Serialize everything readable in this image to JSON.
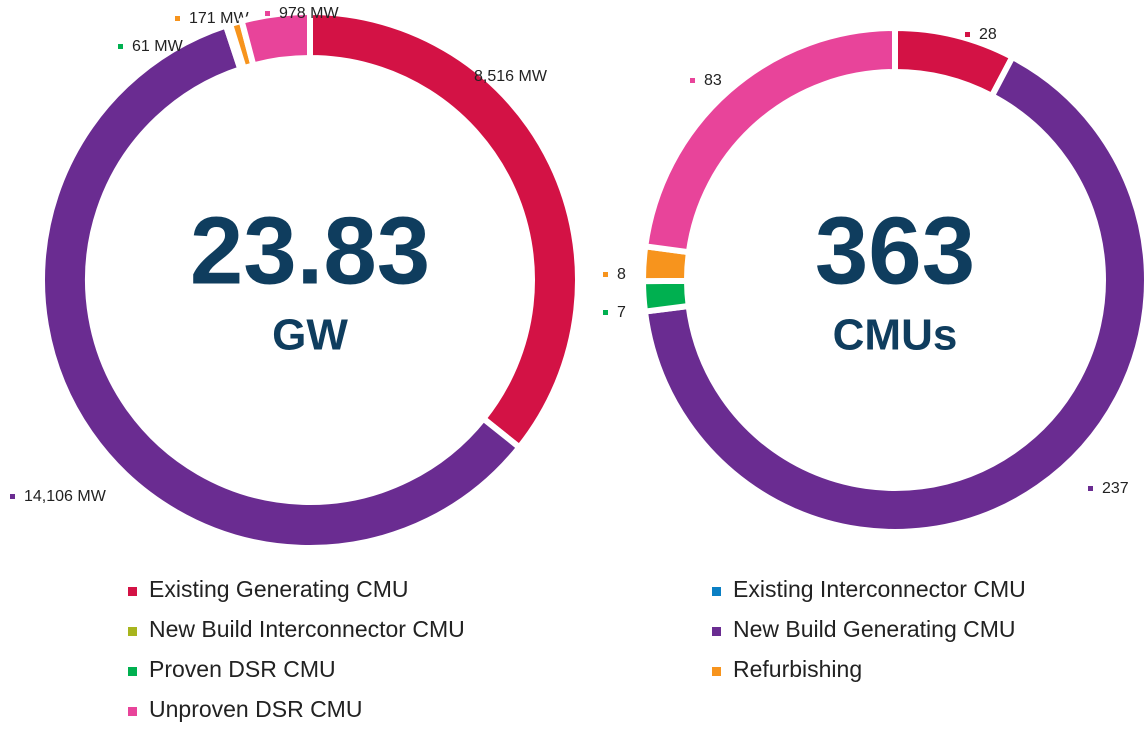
{
  "chart_data": [
    {
      "type": "donut",
      "center_value": "23.83",
      "center_unit": "GW",
      "categories": [
        "Existing Generating CMU",
        "New Build Generating CMU",
        "Proven DSR CMU",
        "Refurbishing",
        "Unproven DSR CMU"
      ],
      "values": [
        8516,
        14106,
        61,
        171,
        978
      ],
      "value_labels": [
        "8,516 MW",
        "14,106 MW",
        "61 MW",
        "171 MW",
        "978 MW"
      ],
      "colors": [
        "#d31245",
        "#6a2c91",
        "#00b050",
        "#f7941d",
        "#e8449a"
      ]
    },
    {
      "type": "donut",
      "center_value": "363",
      "center_unit": "CMUs",
      "categories": [
        "Existing Generating CMU",
        "New Build Generating CMU",
        "Proven DSR CMU",
        "Refurbishing",
        "Unproven DSR CMU"
      ],
      "values": [
        28,
        237,
        7,
        8,
        83
      ],
      "colors": [
        "#d31245",
        "#6a2c91",
        "#00b050",
        "#f7941d",
        "#e8449a"
      ]
    }
  ],
  "legend": [
    {
      "name": "Existing Generating CMU",
      "color": "#d31245"
    },
    {
      "name": "Existing Interconnector CMU",
      "color": "#0a7fc4"
    },
    {
      "name": "New Build Interconnector CMU",
      "color": "#a8b51e"
    },
    {
      "name": "New Build Generating CMU",
      "color": "#6a2c91"
    },
    {
      "name": "Proven DSR CMU",
      "color": "#00b050"
    },
    {
      "name": "Refurbishing",
      "color": "#f7941d"
    },
    {
      "name": "Unproven DSR CMU",
      "color": "#e8449a"
    }
  ]
}
